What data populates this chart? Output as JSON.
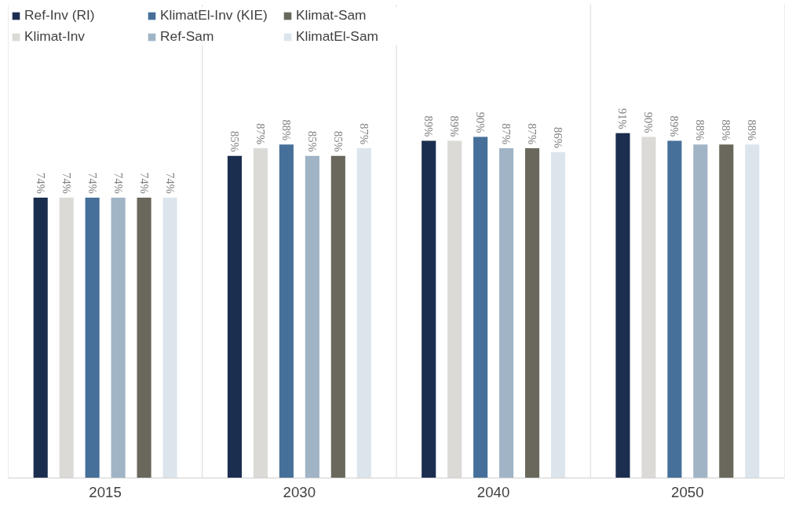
{
  "chart_data": {
    "type": "bar",
    "categories": [
      "2015",
      "2030",
      "2040",
      "2050"
    ],
    "series": [
      {
        "name": "Ref-Inv (RI)",
        "color": "#1c2e4f",
        "values": [
          74,
          85,
          89,
          91
        ],
        "value_labels": [
          "74%",
          "85%",
          "89%",
          "91%"
        ]
      },
      {
        "name": "Klimat-Inv",
        "color": "#dcdad6",
        "values": [
          74,
          87,
          89,
          90
        ],
        "value_labels": [
          "74%",
          "87%",
          "89%",
          "90%"
        ]
      },
      {
        "name": "KlimatEl-Inv (KIE)",
        "color": "#46709a",
        "values": [
          74,
          88,
          90,
          89
        ],
        "value_labels": [
          "74%",
          "88%",
          "90%",
          "89%"
        ]
      },
      {
        "name": "Ref-Sam",
        "color": "#a0b4c6",
        "values": [
          74,
          85,
          87,
          88
        ],
        "value_labels": [
          "74%",
          "85%",
          "87%",
          "88%"
        ]
      },
      {
        "name": "Klimat-Sam",
        "color": "#6a685c",
        "values": [
          74,
          85,
          87,
          88
        ],
        "value_labels": [
          "74%",
          "85%",
          "87%",
          "88%"
        ]
      },
      {
        "name": "KlimatEl-Sam",
        "color": "#dde5ec",
        "values": [
          74,
          87,
          86,
          88
        ],
        "value_labels": [
          "74%",
          "87%",
          "86%",
          "88%"
        ]
      }
    ],
    "ylim": [
      0,
      125
    ],
    "tick_labels": "x",
    "grid": false,
    "legend": "top"
  }
}
